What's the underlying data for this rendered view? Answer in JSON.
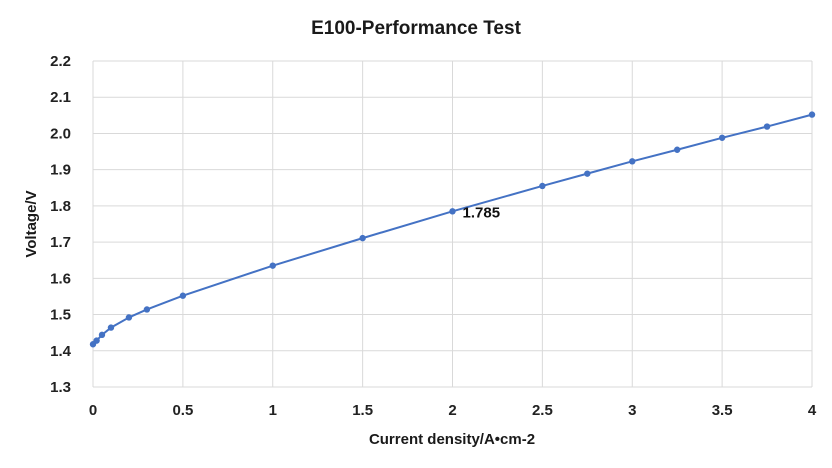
{
  "chart_data": {
    "type": "line",
    "title": "E100-Performance Test",
    "xlabel": "Current density/A•cm-2",
    "ylabel": "Voltage/V",
    "xlim": [
      0,
      4
    ],
    "ylim": [
      1.3,
      2.2
    ],
    "x_ticks": [
      "0",
      "0.5",
      "1",
      "1.5",
      "2",
      "2.5",
      "3",
      "3.5",
      "4"
    ],
    "y_ticks": [
      "1.3",
      "1.4",
      "1.5",
      "1.6",
      "1.7",
      "1.8",
      "1.9",
      "2.0",
      "2.1",
      "2.2"
    ],
    "grid": true,
    "legend": "none",
    "series": [
      {
        "color": "#4472C4",
        "points": [
          {
            "x": 0.0,
            "y": 1.418
          },
          {
            "x": 0.02,
            "y": 1.428
          },
          {
            "x": 0.05,
            "y": 1.444
          },
          {
            "x": 0.1,
            "y": 1.464
          },
          {
            "x": 0.2,
            "y": 1.492
          },
          {
            "x": 0.3,
            "y": 1.514
          },
          {
            "x": 0.5,
            "y": 1.552
          },
          {
            "x": 1.0,
            "y": 1.635
          },
          {
            "x": 1.5,
            "y": 1.711
          },
          {
            "x": 2.0,
            "y": 1.785
          },
          {
            "x": 2.5,
            "y": 1.855
          },
          {
            "x": 2.75,
            "y": 1.889
          },
          {
            "x": 3.0,
            "y": 1.923
          },
          {
            "x": 3.25,
            "y": 1.955
          },
          {
            "x": 3.5,
            "y": 1.988
          },
          {
            "x": 3.75,
            "y": 2.019
          },
          {
            "x": 4.0,
            "y": 2.052
          }
        ]
      }
    ],
    "annotations": [
      {
        "text": "1.785",
        "x": 2.0,
        "y": 1.785
      }
    ]
  }
}
